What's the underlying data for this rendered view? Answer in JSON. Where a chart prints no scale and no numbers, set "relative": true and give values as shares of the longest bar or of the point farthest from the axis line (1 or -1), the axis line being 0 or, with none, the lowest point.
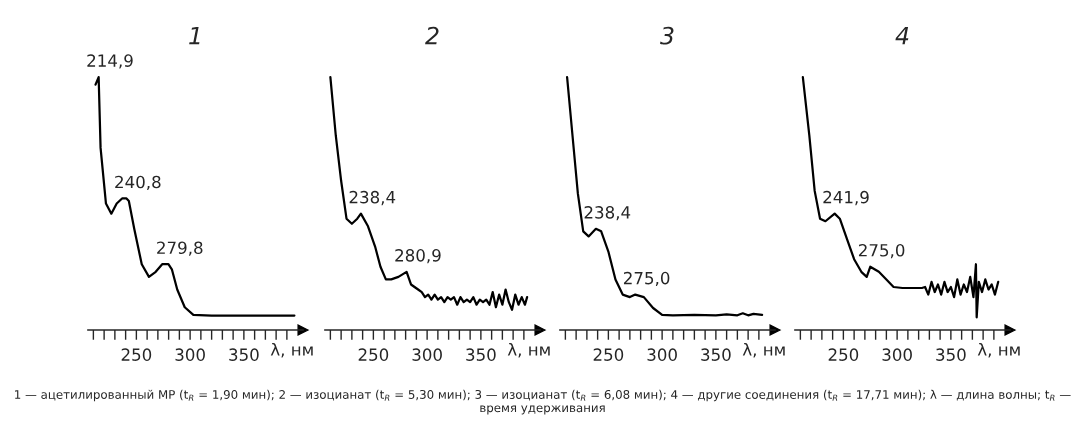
{
  "chart_data": [
    {
      "type": "line",
      "title": "1",
      "relative": true,
      "xlim": [
        205,
        405
      ],
      "xlabel": "λ, нм",
      "tick_labels": "x",
      "xticks": [
        {
          "value": 210,
          "label": null
        },
        {
          "value": 220,
          "label": null
        },
        {
          "value": 230,
          "label": null
        },
        {
          "value": 240,
          "label": null
        },
        250,
        {
          "value": 260,
          "label": null
        },
        {
          "value": 270,
          "label": null
        },
        {
          "value": 280,
          "label": null
        },
        {
          "value": 290,
          "label": null
        },
        300,
        {
          "value": 310,
          "label": null
        },
        {
          "value": 320,
          "label": null
        },
        {
          "value": 330,
          "label": null
        },
        {
          "value": 340,
          "label": null
        },
        350,
        {
          "value": 360,
          "label": null
        },
        {
          "value": 370,
          "label": null
        },
        {
          "value": 380,
          "label": null
        },
        {
          "value": 390,
          "label": null
        }
      ],
      "x": [
        212,
        214.9,
        216.7,
        221.7,
        226.7,
        231.7,
        236.7,
        240.8,
        243,
        248,
        255,
        261.7,
        268,
        274,
        279.8,
        283,
        288,
        295,
        303,
        320,
        397
      ],
      "series": [
        {
          "color": "#000000",
          "values": [
            0.97,
            1.0,
            0.72,
            0.5,
            0.46,
            0.5,
            0.52,
            0.52,
            0.51,
            0.4,
            0.26,
            0.21,
            0.23,
            0.26,
            0.26,
            0.24,
            0.16,
            0.09,
            0.06,
            0.057,
            0.057
          ]
        }
      ],
      "annotations": [
        {
          "text": "214,9",
          "x": 214.9,
          "y": 1.0
        },
        {
          "text": "240,8",
          "x": 240.8,
          "y": 0.52
        },
        {
          "text": "279,8",
          "x": 279.8,
          "y": 0.26
        },
        "1 — ацетилированный МР (t$_{R}$ = 1,90 мин); 2 — изоцианат (t$_{R}$ = 5,30 мин); 3 — изоцианат (t$_{R}$ = 6,08 мин); 4 — другие соединения (t$_{R}$ = 17,71 мин); λ — длина волны; t$_{R}$ — время удерживания"
      ]
    },
    {
      "type": "line",
      "title": "2",
      "relative": true,
      "xlim": [
        205,
        405
      ],
      "xlabel": "λ, нм",
      "tick_labels": "x",
      "xticks": [
        {
          "value": 210,
          "label": null
        },
        {
          "value": 220,
          "label": null
        },
        {
          "value": 230,
          "label": null
        },
        {
          "value": 240,
          "label": null
        },
        250,
        {
          "value": 260,
          "label": null
        },
        {
          "value": 270,
          "label": null
        },
        {
          "value": 280,
          "label": null
        },
        {
          "value": 290,
          "label": null
        },
        300,
        {
          "value": 310,
          "label": null
        },
        {
          "value": 320,
          "label": null
        },
        {
          "value": 330,
          "label": null
        },
        {
          "value": 340,
          "label": null
        },
        350,
        {
          "value": 360,
          "label": null
        },
        {
          "value": 370,
          "label": null
        },
        {
          "value": 380,
          "label": null
        },
        {
          "value": 390,
          "label": null
        }
      ],
      "x": [
        210,
        215,
        220,
        225,
        230,
        235,
        238.4,
        245,
        251.6,
        256.6,
        261.6,
        266.6,
        273.3,
        280.9,
        285,
        291.6,
        295,
        298,
        301,
        304,
        307,
        310,
        313,
        316,
        319,
        322,
        325,
        328,
        331,
        334,
        337,
        340,
        343,
        346,
        349,
        352,
        355,
        358,
        361,
        364,
        367,
        370,
        373,
        376,
        379,
        382,
        385,
        388,
        391,
        393
      ],
      "series": [
        {
          "color": "#000000",
          "values": [
            1.0,
            0.77,
            0.59,
            0.44,
            0.42,
            0.44,
            0.46,
            0.41,
            0.33,
            0.25,
            0.2,
            0.2,
            0.21,
            0.23,
            0.18,
            0.16,
            0.15,
            0.13,
            0.14,
            0.12,
            0.14,
            0.12,
            0.13,
            0.11,
            0.13,
            0.12,
            0.13,
            0.1,
            0.13,
            0.11,
            0.12,
            0.11,
            0.13,
            0.1,
            0.12,
            0.11,
            0.12,
            0.1,
            0.15,
            0.09,
            0.14,
            0.1,
            0.16,
            0.11,
            0.08,
            0.14,
            0.1,
            0.13,
            0.1,
            0.13
          ]
        }
      ],
      "annotations": [
        {
          "text": "238,4",
          "x": 238.4,
          "y": 0.46
        },
        {
          "text": "280,9",
          "x": 280.9,
          "y": 0.23
        }
      ]
    },
    {
      "type": "line",
      "title": "3",
      "relative": true,
      "xlim": [
        205,
        405
      ],
      "xlabel": "λ, нм",
      "tick_labels": "x",
      "xticks": [
        {
          "value": 210,
          "label": null
        },
        {
          "value": 220,
          "label": null
        },
        {
          "value": 230,
          "label": null
        },
        {
          "value": 240,
          "label": null
        },
        250,
        {
          "value": 260,
          "label": null
        },
        {
          "value": 270,
          "label": null
        },
        {
          "value": 280,
          "label": null
        },
        {
          "value": 290,
          "label": null
        },
        300,
        {
          "value": 310,
          "label": null
        },
        {
          "value": 320,
          "label": null
        },
        {
          "value": 330,
          "label": null
        },
        {
          "value": 340,
          "label": null
        },
        350,
        {
          "value": 360,
          "label": null
        },
        {
          "value": 370,
          "label": null
        },
        {
          "value": 380,
          "label": null
        },
        {
          "value": 390,
          "label": null
        }
      ],
      "x": [
        211.6,
        216.6,
        221.6,
        226.6,
        231.6,
        238.4,
        243.3,
        250,
        256.6,
        263.3,
        270,
        275.0,
        283,
        291.6,
        300,
        310,
        330,
        350,
        360,
        370,
        375,
        380,
        385,
        393
      ],
      "series": [
        {
          "color": "#000000",
          "values": [
            1.0,
            0.77,
            0.54,
            0.39,
            0.37,
            0.4,
            0.39,
            0.31,
            0.2,
            0.14,
            0.13,
            0.14,
            0.13,
            0.087,
            0.06,
            0.058,
            0.06,
            0.058,
            0.062,
            0.058,
            0.066,
            0.058,
            0.064,
            0.06
          ]
        }
      ],
      "annotations": [
        {
          "text": "238,4",
          "x": 238.4,
          "y": 0.4
        },
        {
          "text": "275,0",
          "x": 275.0,
          "y": 0.14
        }
      ]
    },
    {
      "type": "line",
      "title": "4",
      "relative": true,
      "xlim": [
        205,
        405
      ],
      "xlabel": "λ, нм",
      "tick_labels": "x",
      "xticks": [
        {
          "value": 210,
          "label": null
        },
        {
          "value": 220,
          "label": null
        },
        {
          "value": 230,
          "label": null
        },
        {
          "value": 240,
          "label": null
        },
        250,
        {
          "value": 260,
          "label": null
        },
        {
          "value": 270,
          "label": null
        },
        {
          "value": 280,
          "label": null
        },
        {
          "value": 290,
          "label": null
        },
        300,
        {
          "value": 310,
          "label": null
        },
        {
          "value": 320,
          "label": null
        },
        {
          "value": 330,
          "label": null
        },
        {
          "value": 340,
          "label": null
        },
        350,
        {
          "value": 360,
          "label": null
        },
        {
          "value": 370,
          "label": null
        },
        {
          "value": 380,
          "label": null
        },
        {
          "value": 390,
          "label": null
        }
      ],
      "x": [
        212.3,
        218.3,
        223.3,
        228.3,
        233.3,
        241.9,
        246.7,
        253.3,
        260,
        266.7,
        271.7,
        275.0,
        283,
        290,
        296.7,
        305,
        315,
        323,
        326,
        329,
        332,
        335,
        338,
        341,
        344,
        347,
        350,
        353,
        356,
        359,
        362,
        365,
        368,
        371,
        373.3,
        374,
        376,
        379,
        382,
        385,
        388,
        391,
        394
      ],
      "series": [
        {
          "color": "#000000",
          "values": [
            1.0,
            0.77,
            0.55,
            0.44,
            0.43,
            0.46,
            0.44,
            0.36,
            0.28,
            0.23,
            0.21,
            0.25,
            0.23,
            0.2,
            0.17,
            0.166,
            0.166,
            0.166,
            0.17,
            0.14,
            0.19,
            0.15,
            0.18,
            0.14,
            0.19,
            0.15,
            0.17,
            0.13,
            0.2,
            0.14,
            0.18,
            0.15,
            0.21,
            0.13,
            0.26,
            0.05,
            0.19,
            0.15,
            0.2,
            0.16,
            0.18,
            0.14,
            0.19
          ]
        }
      ],
      "annotations": [
        {
          "text": "241,9",
          "x": 241.9,
          "y": 0.46
        },
        {
          "text": "275,0",
          "x": 275.0,
          "y": 0.25
        }
      ]
    }
  ]
}
